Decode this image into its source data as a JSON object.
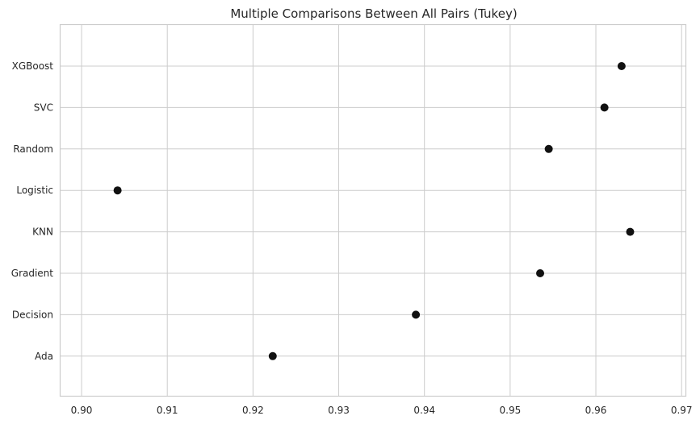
{
  "chart_data": {
    "type": "scatter",
    "title": "Multiple Comparisons Between All Pairs (Tukey)",
    "xlabel": "",
    "ylabel": "",
    "xlim": [
      0.8975,
      0.9705
    ],
    "xticks": [
      "0.90",
      "0.91",
      "0.92",
      "0.93",
      "0.94",
      "0.95",
      "0.96",
      "0.97"
    ],
    "categories": [
      "XGBoost",
      "SVC",
      "Random",
      "Logistic",
      "KNN",
      "Gradient",
      "Decision",
      "Ada"
    ],
    "values": [
      0.963,
      0.961,
      0.9545,
      0.9042,
      0.964,
      0.9535,
      0.939,
      0.9223
    ],
    "grid": true,
    "marker_color": "#111111"
  }
}
